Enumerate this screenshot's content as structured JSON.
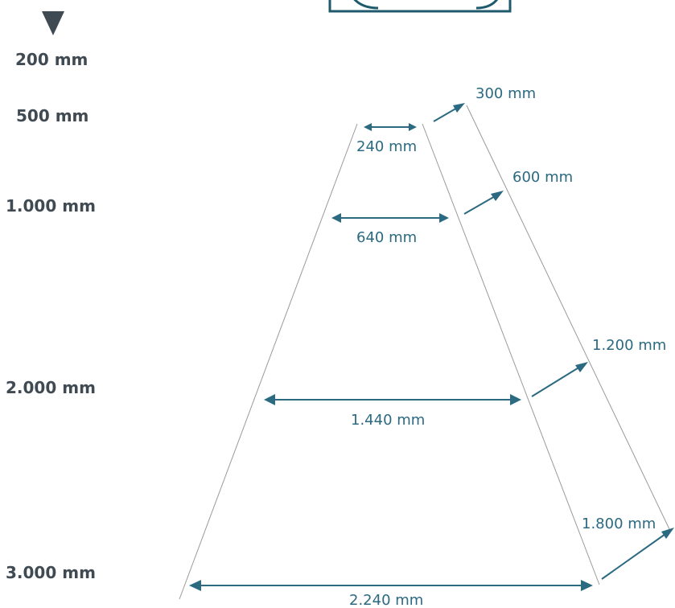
{
  "colors": {
    "accent": "#2b6a80",
    "depth_text": "#404a52",
    "guide_line": "#9a9a9a"
  },
  "icons": {
    "top_marker": "down-triangle-icon",
    "source_icon": "top-box-icon"
  },
  "depth_labels": {
    "d200": "200 mm",
    "d500": "500 mm",
    "d1000": "1.000 mm",
    "d2000": "2.000 mm",
    "d3000": "3.000 mm"
  },
  "inner_widths": {
    "w240": "240 mm",
    "w640": "640 mm",
    "w1440": "1.440 mm",
    "w2240": "2.240 mm"
  },
  "outer_offsets": {
    "o300": "300 mm",
    "o600": "600 mm",
    "o1200": "1.200 mm",
    "o1800": "1.800 mm"
  }
}
